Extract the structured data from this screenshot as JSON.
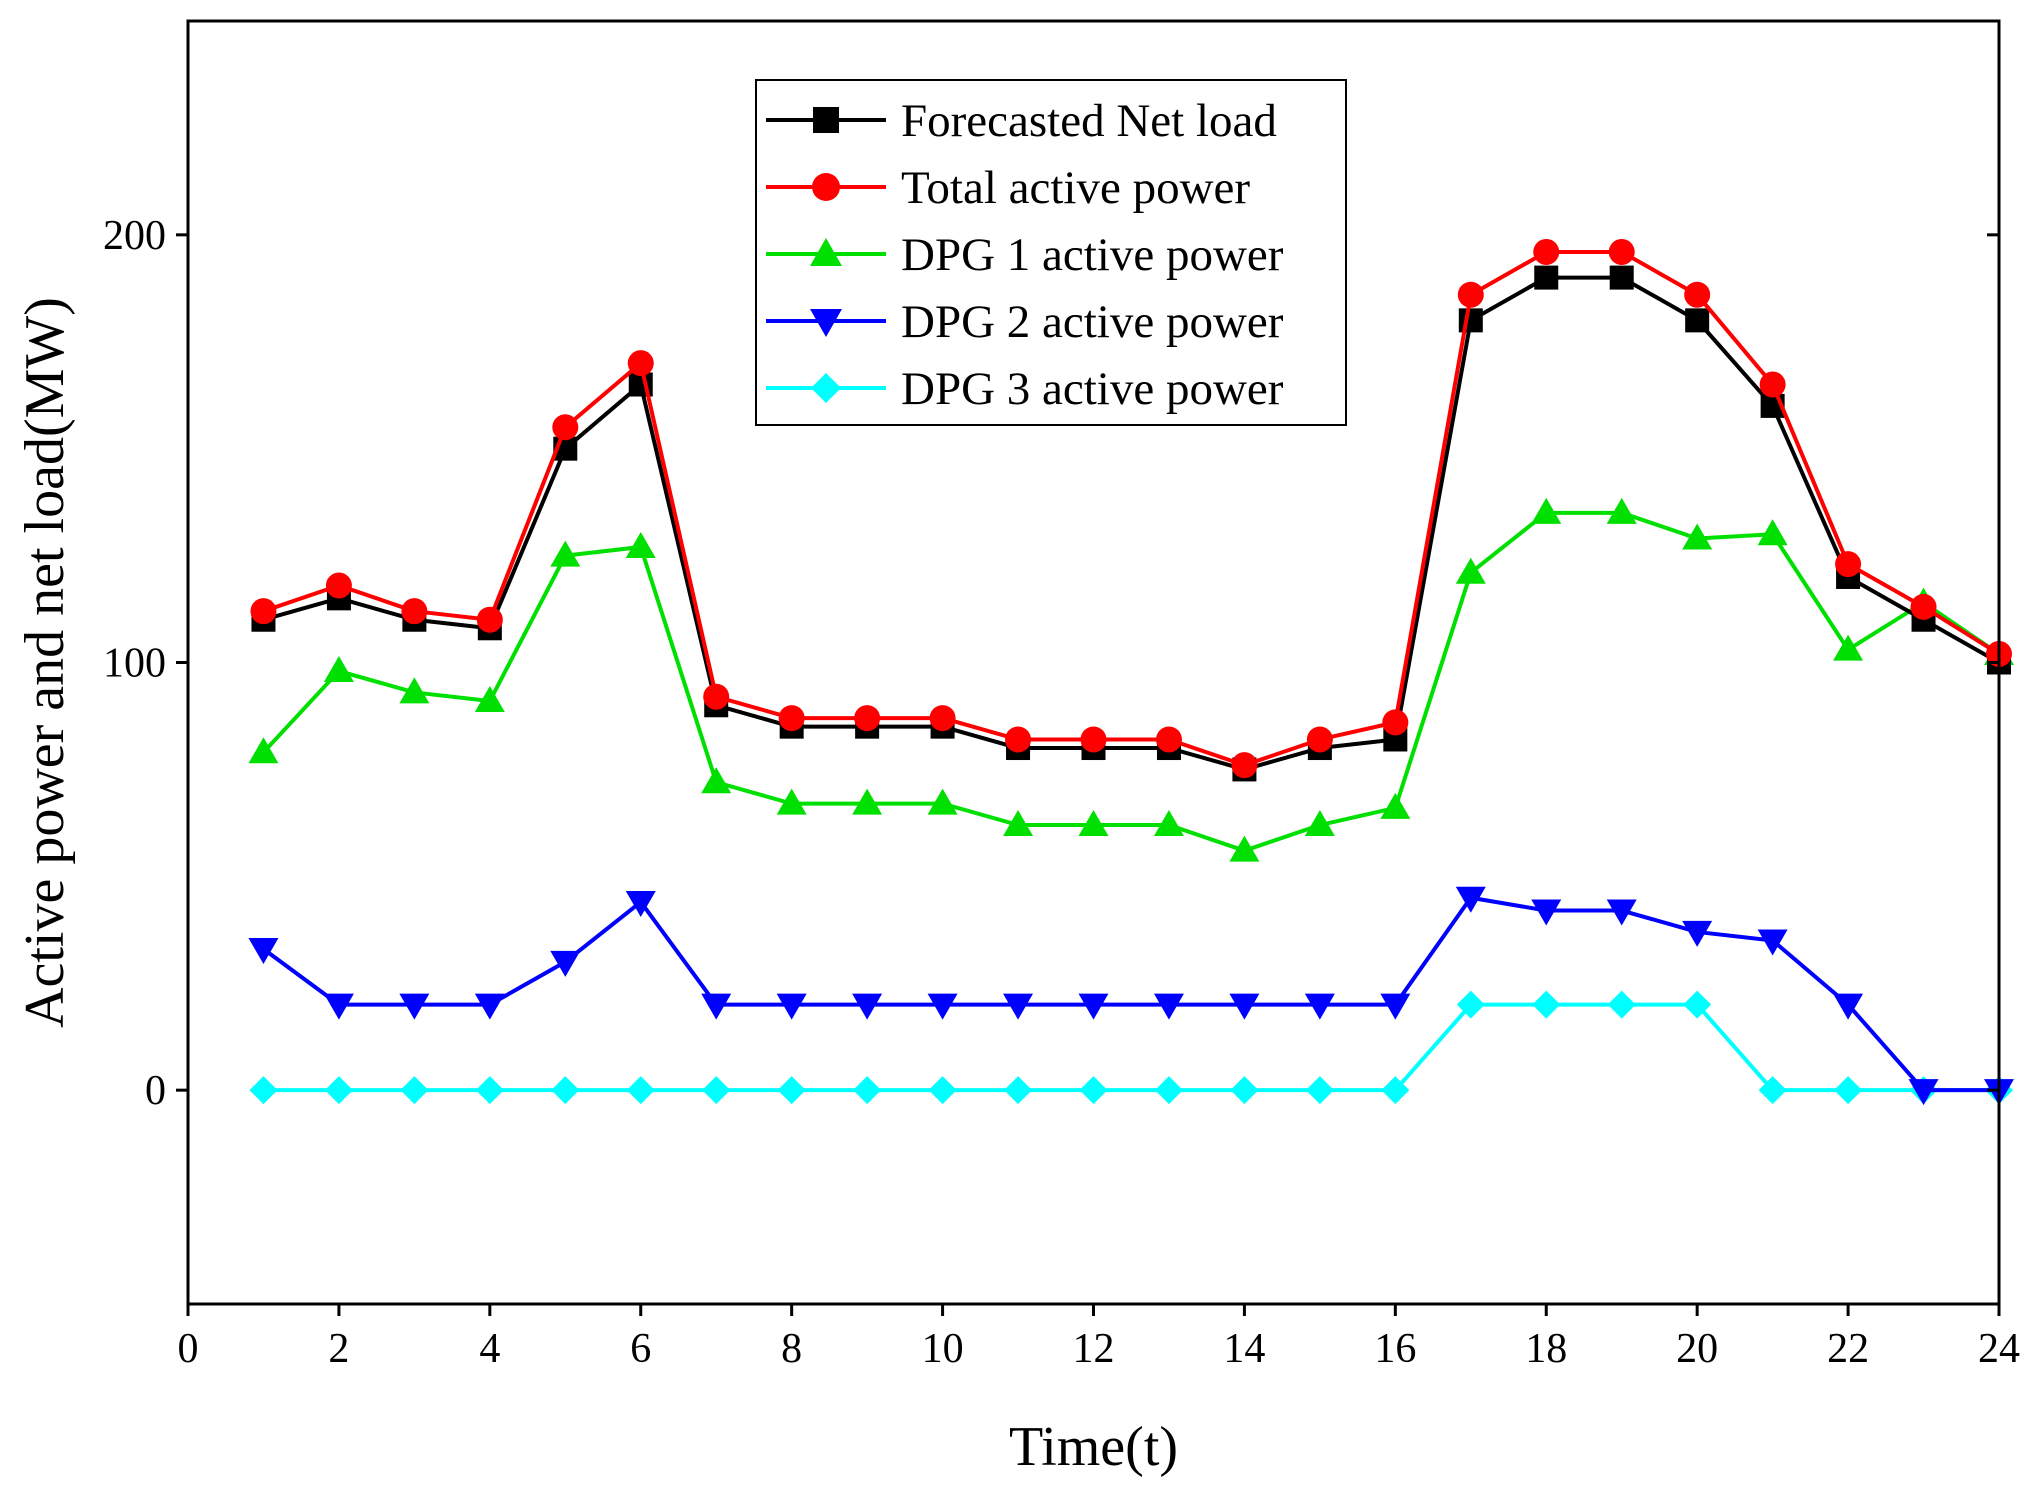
{
  "chart_data": {
    "type": "line",
    "title": "",
    "xlabel": "Time(t)",
    "ylabel": "Active power and net load(MW)",
    "xlim": [
      0,
      24
    ],
    "ylim": [
      -50,
      250
    ],
    "xticks": [
      0,
      2,
      4,
      6,
      8,
      10,
      12,
      14,
      16,
      18,
      20,
      22,
      24
    ],
    "yticks": [
      0,
      100,
      200
    ],
    "grid": false,
    "legend_position": "top-center",
    "x": [
      1,
      2,
      3,
      4,
      5,
      6,
      7,
      8,
      9,
      10,
      11,
      12,
      13,
      14,
      15,
      16,
      17,
      18,
      19,
      20,
      21,
      22,
      23,
      24
    ],
    "series": [
      {
        "name": "Forecasted Net load",
        "color": "#000000",
        "marker": "square",
        "values": [
          110,
          115,
          110,
          108,
          150,
          165,
          90,
          85,
          85,
          85,
          80,
          80,
          80,
          75,
          80,
          82,
          180,
          190,
          190,
          180,
          160,
          120,
          110,
          100
        ]
      },
      {
        "name": "Total active power",
        "color": "#ff0000",
        "marker": "circle",
        "values": [
          112,
          118,
          112,
          110,
          155,
          170,
          92,
          87,
          87,
          87,
          82,
          82,
          82,
          76,
          82,
          86,
          186,
          196,
          196,
          186,
          165,
          123,
          113,
          102
        ]
      },
      {
        "name": "DPG 1 active power",
        "color": "#00e000",
        "marker": "triangle-up",
        "values": [
          79,
          98,
          93,
          91,
          125,
          127,
          72,
          67,
          67,
          67,
          62,
          62,
          62,
          56,
          62,
          66,
          121,
          135,
          135,
          129,
          130,
          103,
          114,
          102
        ]
      },
      {
        "name": "DPG 2 active power",
        "color": "#0000ff",
        "marker": "triangle-down",
        "values": [
          33,
          20,
          20,
          20,
          30,
          44,
          20,
          20,
          20,
          20,
          20,
          20,
          20,
          20,
          20,
          20,
          45,
          42,
          42,
          37,
          35,
          20,
          0,
          0
        ]
      },
      {
        "name": "DPG 3 active power",
        "color": "#00ffff",
        "marker": "diamond",
        "values": [
          0,
          0,
          0,
          0,
          0,
          0,
          0,
          0,
          0,
          0,
          0,
          0,
          0,
          0,
          0,
          0,
          20,
          20,
          20,
          20,
          0,
          0,
          0,
          0
        ]
      }
    ]
  }
}
